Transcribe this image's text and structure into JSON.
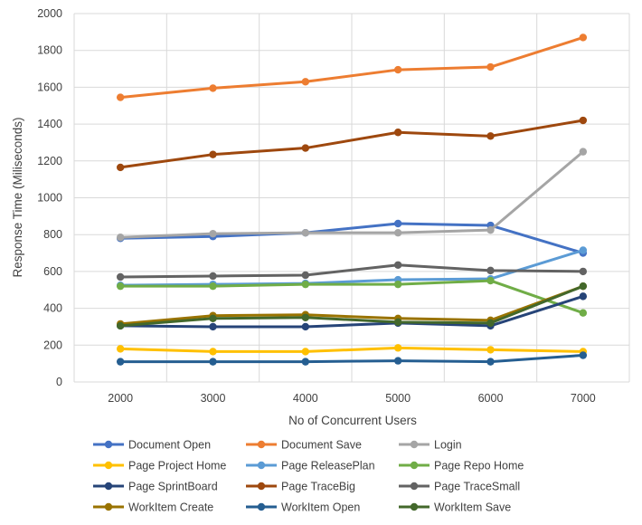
{
  "chart_data": {
    "type": "line",
    "title": "",
    "xlabel": "No of Concurrent Users",
    "ylabel": "Response Time (Miliseconds)",
    "categories": [
      "2000",
      "3000",
      "4000",
      "5000",
      "6000",
      "7000"
    ],
    "ylim": [
      0,
      2000
    ],
    "yticks": [
      "0",
      "200",
      "400",
      "600",
      "800",
      "1000",
      "1200",
      "1400",
      "1600",
      "1800",
      "2000"
    ],
    "grid": true,
    "legend_position": "bottom",
    "series": [
      {
        "name": "Document Open",
        "color": "#4472c4",
        "values": [
          780,
          790,
          810,
          860,
          850,
          700
        ]
      },
      {
        "name": "Document Save",
        "color": "#ed7d31",
        "values": [
          1545,
          1595,
          1630,
          1695,
          1710,
          1870
        ]
      },
      {
        "name": "Login",
        "color": "#a5a5a5",
        "values": [
          785,
          805,
          810,
          810,
          825,
          1250
        ]
      },
      {
        "name": "Page Project Home",
        "color": "#ffc000",
        "values": [
          180,
          165,
          165,
          185,
          175,
          165
        ]
      },
      {
        "name": "Page ReleasePlan",
        "color": "#5b9bd5",
        "values": [
          525,
          530,
          535,
          555,
          560,
          715
        ]
      },
      {
        "name": "Page Repo Home",
        "color": "#70ad47",
        "values": [
          520,
          520,
          530,
          530,
          550,
          375
        ]
      },
      {
        "name": "Page SprintBoard",
        "color": "#264478",
        "values": [
          305,
          300,
          300,
          320,
          305,
          465
        ]
      },
      {
        "name": "Page TraceBig",
        "color": "#9e480e",
        "values": [
          1165,
          1235,
          1270,
          1355,
          1335,
          1420
        ]
      },
      {
        "name": "Page TraceSmall",
        "color": "#636363",
        "values": [
          570,
          575,
          580,
          635,
          605,
          600
        ]
      },
      {
        "name": "WorkItem Create",
        "color": "#997300",
        "values": [
          315,
          360,
          365,
          345,
          335,
          520
        ]
      },
      {
        "name": "WorkItem Open",
        "color": "#255e91",
        "values": [
          110,
          110,
          110,
          115,
          110,
          145
        ]
      },
      {
        "name": "WorkItem Save",
        "color": "#43682b",
        "values": [
          305,
          345,
          350,
          325,
          320,
          520
        ]
      }
    ]
  }
}
